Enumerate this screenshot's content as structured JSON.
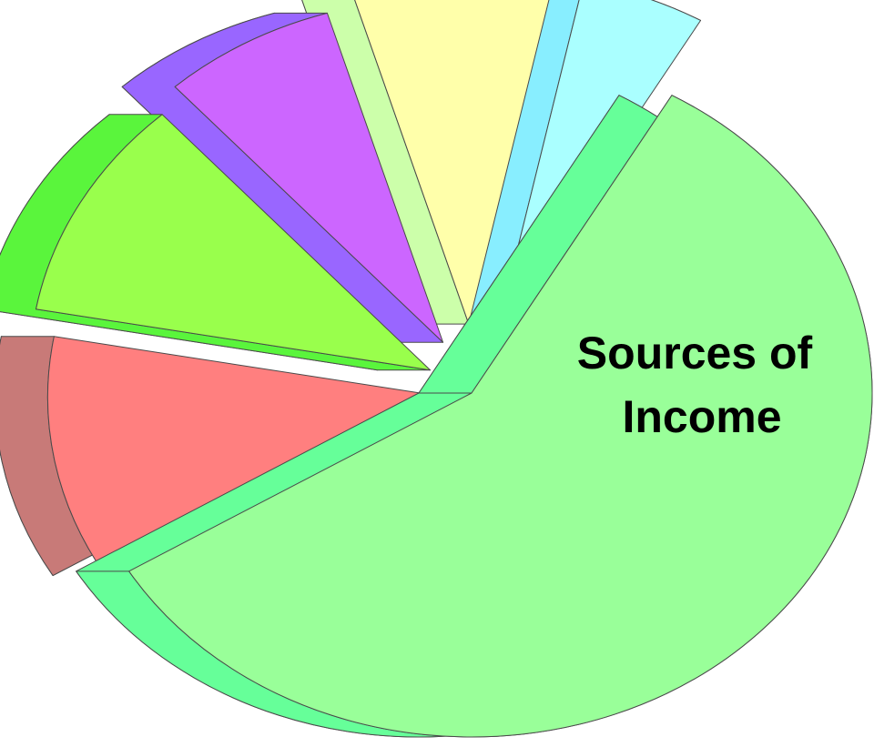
{
  "chart_data": {
    "type": "pie",
    "style": "3d-exploded",
    "title_lines": [
      "Sources of",
      "Income"
    ],
    "legend": "none",
    "slices": [
      {
        "value": 58.0,
        "top_color": "#99FF99",
        "side_color": "#66FF99"
      },
      {
        "value": 11.5,
        "top_color": "#FF7F7F",
        "side_color": "#C87A78"
      },
      {
        "value": 10.5,
        "top_color": "#99FF4C",
        "side_color": "#5AF53C"
      },
      {
        "value": 7.0,
        "top_color": "#CC66FF",
        "side_color": "#9966FF"
      },
      {
        "value": 8.0,
        "top_color": "#FFFFAA",
        "side_color": "#CCFFAA"
      },
      {
        "value": 5.0,
        "top_color": "#AAFFFF",
        "side_color": "#88EEFF"
      }
    ]
  }
}
